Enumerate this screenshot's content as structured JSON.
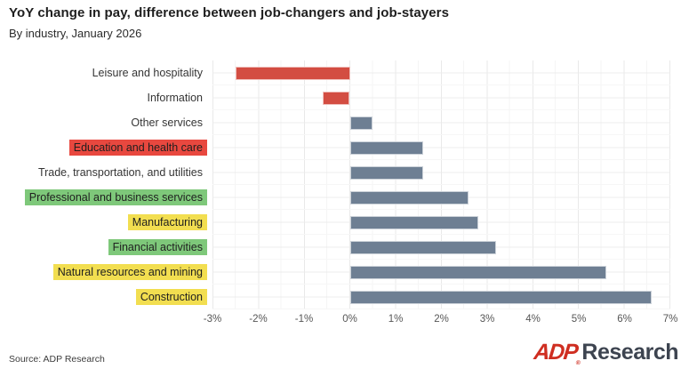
{
  "header": {
    "title": "YoY change in pay, difference between job-changers and job-stayers",
    "subtitle": "By industry, January 2026"
  },
  "chart_data": {
    "type": "bar",
    "orientation": "horizontal",
    "title": "YoY change in pay, difference between job-changers and job-stayers",
    "subtitle": "By industry, January 2026",
    "xlabel": "",
    "ylabel": "",
    "unit": "%",
    "xlim": [
      -3,
      7
    ],
    "grid": true,
    "x_ticks": [
      "-3%",
      "-2%",
      "-1%",
      "0%",
      "1%",
      "2%",
      "3%",
      "4%",
      "5%",
      "6%",
      "7%"
    ],
    "categories": [
      "Leisure and hospitality",
      "Information",
      "Other services",
      "Education and health care",
      "Trade, transportation, and utilities",
      "Professional and business services",
      "Manufacturing",
      "Financial activities",
      "Natural resources and mining",
      "Construction"
    ],
    "values": [
      -2.5,
      -0.6,
      0.5,
      1.6,
      1.6,
      2.6,
      2.8,
      3.2,
      5.6,
      6.6
    ],
    "label_highlights": [
      null,
      null,
      null,
      "red",
      null,
      "green",
      "yellow",
      "green",
      "yellow",
      "yellow"
    ],
    "bar_colors": {
      "negative": "#d34d42",
      "positive": "#6e7f93"
    },
    "label_highlight_colors": {
      "red": "#e8483f",
      "green": "#7ec87a",
      "yellow": "#f2de50"
    },
    "highlight_text_color": "#1f1f1f"
  },
  "footer": {
    "source": "Source: ADP Research",
    "logo_adp": "ADP",
    "logo_reg": "®",
    "logo_research": "Research",
    "logo_adp_color": "#cf2e21",
    "logo_research_color": "#3d4450"
  }
}
